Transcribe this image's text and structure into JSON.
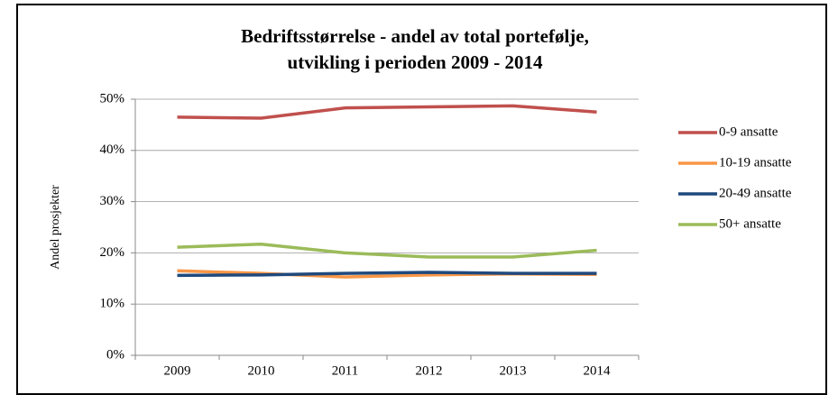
{
  "chart_data": {
    "type": "line",
    "title": [
      "Bedriftsstørrelse - andel av total portefølje,",
      "utvikling i perioden  2009 - 2014"
    ],
    "y_label": "Andel prosjekter",
    "categories": [
      "2009",
      "2010",
      "2011",
      "2012",
      "2013",
      "2014"
    ],
    "series": [
      {
        "name": "0-9 ansatte",
        "color": "#c0504d",
        "values": [
          46.5,
          46.3,
          48.3,
          48.5,
          48.7,
          47.5
        ]
      },
      {
        "name": "10-19 ansatte",
        "color": "#f79646",
        "values": [
          16.5,
          16.0,
          15.3,
          15.7,
          15.9,
          15.8
        ]
      },
      {
        "name": "20-49 ansatte",
        "color": "#1f497d",
        "values": [
          15.6,
          15.7,
          16.0,
          16.2,
          16.0,
          16.0
        ]
      },
      {
        "name": "50+ ansatte",
        "color": "#9bbb59",
        "values": [
          21.1,
          21.7,
          20.0,
          19.2,
          19.2,
          20.5
        ]
      }
    ],
    "ylim": [
      0,
      50
    ],
    "yticks": [
      {
        "value": 0,
        "label": "0%"
      },
      {
        "value": 10,
        "label": "10%"
      },
      {
        "value": 20,
        "label": "20%"
      },
      {
        "value": 30,
        "label": "30%"
      },
      {
        "value": 40,
        "label": "40%"
      },
      {
        "value": 50,
        "label": "50%"
      }
    ],
    "grid": true,
    "legend": "right"
  }
}
